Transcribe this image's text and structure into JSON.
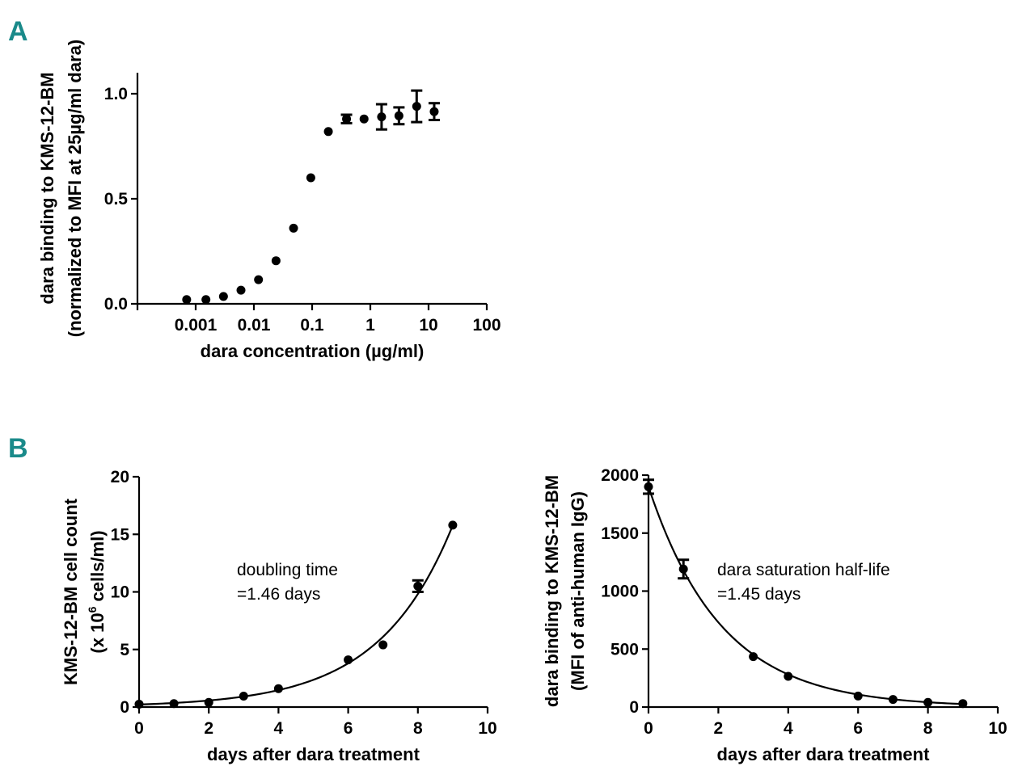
{
  "panels": {
    "a": "A",
    "b": "B"
  },
  "chart_data": [
    {
      "type": "scatter",
      "panel": "A",
      "xscale": "log",
      "xlabel": "dara concentration (µg/ml)",
      "ylabel_line1": "dara binding to KMS-12-BM",
      "ylabel_line2": "(normalized to MFI at 25µg/ml dara)",
      "xlim": [
        0.0001,
        100
      ],
      "ylim": [
        0,
        1.1
      ],
      "xticks": [
        0.001,
        0.01,
        0.1,
        1,
        10,
        100
      ],
      "xtick_labels": [
        "0.001",
        "0.01",
        "0.1",
        "1",
        "10",
        "100"
      ],
      "yticks": [
        0,
        0.5,
        1
      ],
      "ytick_labels": [
        "0.0",
        "0.5",
        "1.0"
      ],
      "x": [
        0.0007,
        0.0015,
        0.003,
        0.006,
        0.012,
        0.024,
        0.048,
        0.095,
        0.19,
        0.39,
        0.78,
        1.56,
        3.1,
        6.25,
        12.5
      ],
      "y": [
        0.02,
        0.02,
        0.035,
        0.065,
        0.115,
        0.205,
        0.36,
        0.6,
        0.82,
        0.88,
        0.88,
        0.89,
        0.895,
        0.94,
        0.915
      ],
      "err": [
        0,
        0,
        0,
        0,
        0,
        0,
        0,
        0,
        0,
        0.02,
        0,
        0.06,
        0.04,
        0.075,
        0.04
      ]
    },
    {
      "type": "scatter",
      "panel": "B-left",
      "xlabel": "days after dara treatment",
      "ylabel_line1": "KMS-12-BM cell count",
      "ylabel_line2_pre": "(x 10",
      "ylabel_line2_sup": "6",
      "ylabel_line2_post": " cells/ml)",
      "xlim": [
        0,
        10
      ],
      "ylim": [
        0,
        20
      ],
      "xticks": [
        0,
        2,
        4,
        6,
        8,
        10
      ],
      "yticks": [
        0,
        5,
        10,
        15,
        20
      ],
      "x": [
        0,
        1,
        2,
        3,
        4,
        6,
        7,
        8,
        9
      ],
      "y": [
        0.25,
        0.3,
        0.4,
        0.95,
        1.6,
        4.1,
        5.4,
        10.5,
        15.8
      ],
      "err": [
        0,
        0,
        0,
        0,
        0,
        0,
        0,
        0.5,
        0
      ],
      "fit": {
        "model": "exponential growth",
        "y0": 0.22,
        "doubling_time_days": 1.46
      },
      "annotation_line1": "doubling time",
      "annotation_line2": "=1.46 days"
    },
    {
      "type": "scatter",
      "panel": "B-right",
      "xlabel": "days after dara treatment",
      "ylabel_line1": "dara binding to KMS-12-BM",
      "ylabel_line2": "(MFI of anti-human IgG)",
      "xlim": [
        0,
        10
      ],
      "ylim": [
        0,
        2000
      ],
      "xticks": [
        0,
        2,
        4,
        6,
        8,
        10
      ],
      "yticks": [
        0,
        500,
        1000,
        1500,
        2000
      ],
      "x": [
        0,
        1,
        3,
        4,
        6,
        7,
        8,
        9
      ],
      "y": [
        1900,
        1190,
        435,
        265,
        95,
        65,
        40,
        30
      ],
      "err": [
        60,
        80,
        0,
        0,
        0,
        0,
        0,
        0
      ],
      "fit": {
        "model": "exponential decay",
        "y0": 1900,
        "half_life_days": 1.45
      },
      "annotation_line1": "dara saturation half-life",
      "annotation_line2": "=1.45 days"
    }
  ]
}
